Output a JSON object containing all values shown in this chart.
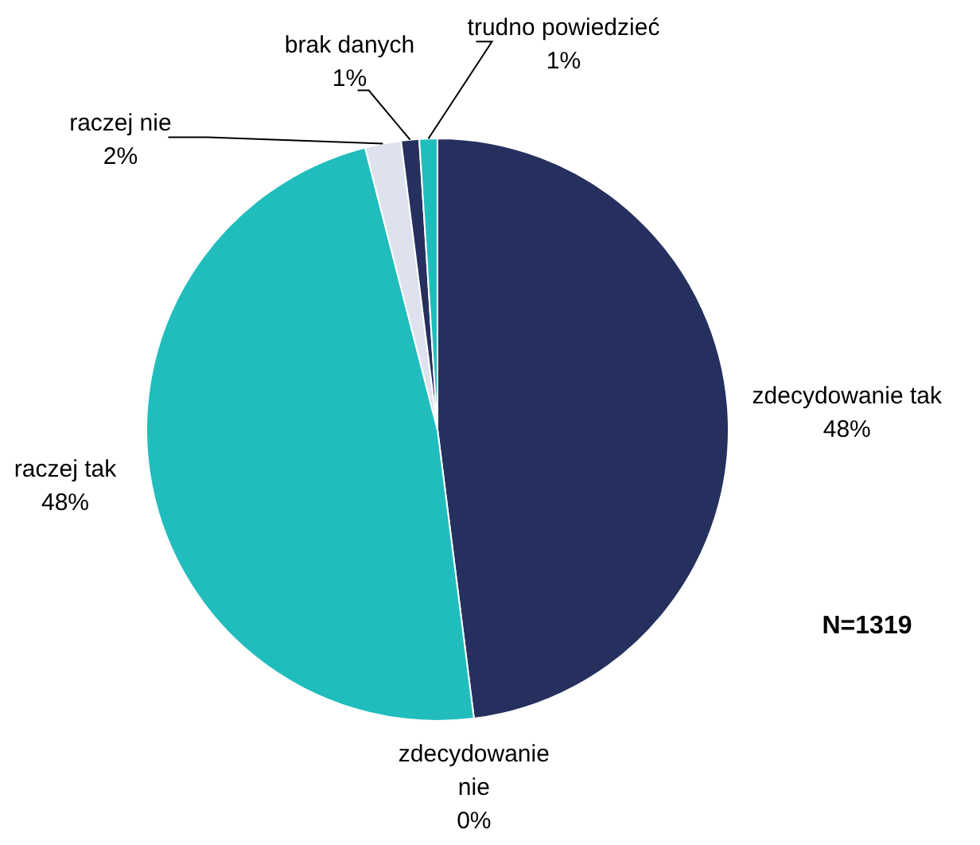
{
  "chart_data": {
    "type": "pie",
    "categories": [
      "zdecydowanie tak",
      "zdecydowanie nie",
      "raczej tak",
      "raczej nie",
      "brak danych",
      "trudno powiedzieć"
    ],
    "values": [
      48,
      0,
      48,
      2,
      1,
      1
    ],
    "colors": [
      "#26305f",
      "#26305f",
      "#21bdbd",
      "#dde2ee",
      "#26305f",
      "#21bdbd"
    ],
    "value_labels": [
      "48%",
      "0%",
      "48%",
      "2%",
      "1%",
      "1%"
    ],
    "annotations": [
      "N=1319"
    ],
    "legend": false
  }
}
